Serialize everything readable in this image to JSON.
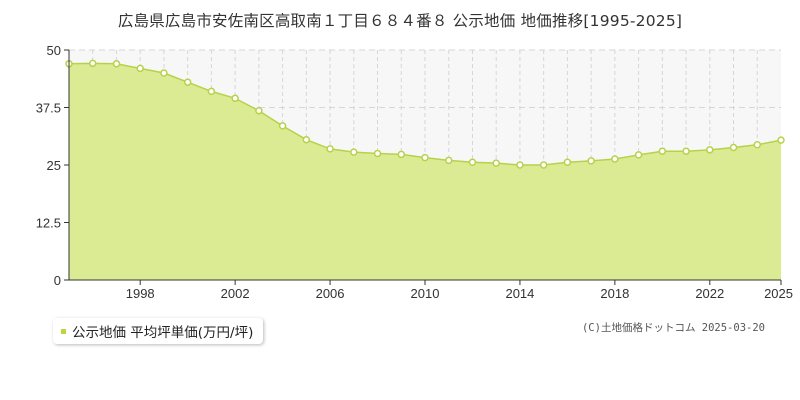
{
  "title": "広島県広島市安佐南区高取南１丁目６８４番８ 公示地価 地価推移[1995-2025]",
  "legend": {
    "label": "公示地価 平均坪単価(万円/坪)"
  },
  "copyright": "(C)土地価格ドットコム 2025-03-20",
  "colors": {
    "area_fill": "#dbeb94",
    "line": "#b5d24a",
    "marker_stroke": "#b5d24a",
    "marker_fill": "#ffffff",
    "legend_swatch": "#b9d743",
    "plot_bg": "#f7f7f7",
    "grid": "#d6d6d6",
    "axis": "#333333"
  },
  "chart_data": {
    "type": "area",
    "title": "広島県広島市安佐南区高取南１丁目６８４番８ 公示地価 地価推移[1995-2025]",
    "xlabel": "",
    "ylabel": "",
    "xlim": [
      1995,
      2025
    ],
    "ylim": [
      0,
      50
    ],
    "yticks": [
      0,
      12.5,
      25,
      37.5,
      50
    ],
    "ytick_labels": [
      "0",
      "12.5",
      "25",
      "37.5",
      "50"
    ],
    "xticks": [
      1998,
      2002,
      2006,
      2010,
      2014,
      2018,
      2022,
      2025
    ],
    "xtick_labels": [
      "1998",
      "2002",
      "2006",
      "2010",
      "2014",
      "2018",
      "2022",
      "2025"
    ],
    "grid": true,
    "legend_position": "bottom-left",
    "series": [
      {
        "name": "公示地価 平均坪単価(万円/坪)",
        "x": [
          1995,
          1996,
          1997,
          1998,
          1999,
          2000,
          2001,
          2002,
          2003,
          2004,
          2005,
          2006,
          2007,
          2008,
          2009,
          2010,
          2011,
          2012,
          2013,
          2014,
          2015,
          2016,
          2017,
          2018,
          2019,
          2020,
          2021,
          2022,
          2023,
          2024,
          2025
        ],
        "values": [
          47.0,
          47.1,
          47.0,
          46.0,
          45.0,
          43.0,
          41.0,
          39.5,
          36.8,
          33.5,
          30.5,
          28.5,
          27.8,
          27.5,
          27.3,
          26.6,
          26.0,
          25.6,
          25.4,
          25.0,
          25.0,
          25.6,
          25.9,
          26.3,
          27.2,
          28.0,
          28.0,
          28.3,
          28.8,
          29.4,
          30.4
        ]
      }
    ]
  }
}
